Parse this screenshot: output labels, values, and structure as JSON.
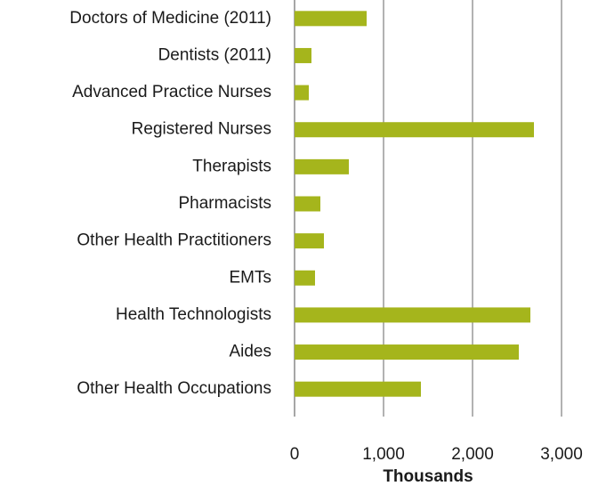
{
  "chart_data": {
    "type": "bar",
    "orientation": "horizontal",
    "categories": [
      "Doctors of Medicine (2011)",
      "Dentists (2011)",
      "Advanced Practice Nurses",
      "Registered Nurses",
      "Therapists",
      "Pharmacists",
      "Other Health Practitioners",
      "EMTs",
      "Health Technologists",
      "Aides",
      "Other Health Occupations"
    ],
    "values": [
      810,
      190,
      160,
      2690,
      610,
      290,
      330,
      230,
      2650,
      2520,
      1420
    ],
    "color": "#a5b51c",
    "xlabel": "Thousands",
    "xlim": [
      0,
      3000
    ],
    "xticks": [
      0,
      {
        "value": 1000,
        "label": "1,000"
      },
      {
        "value": 2000,
        "label": "2,000"
      },
      {
        "value": 3000,
        "label": "3,000"
      }
    ],
    "grid": true
  }
}
